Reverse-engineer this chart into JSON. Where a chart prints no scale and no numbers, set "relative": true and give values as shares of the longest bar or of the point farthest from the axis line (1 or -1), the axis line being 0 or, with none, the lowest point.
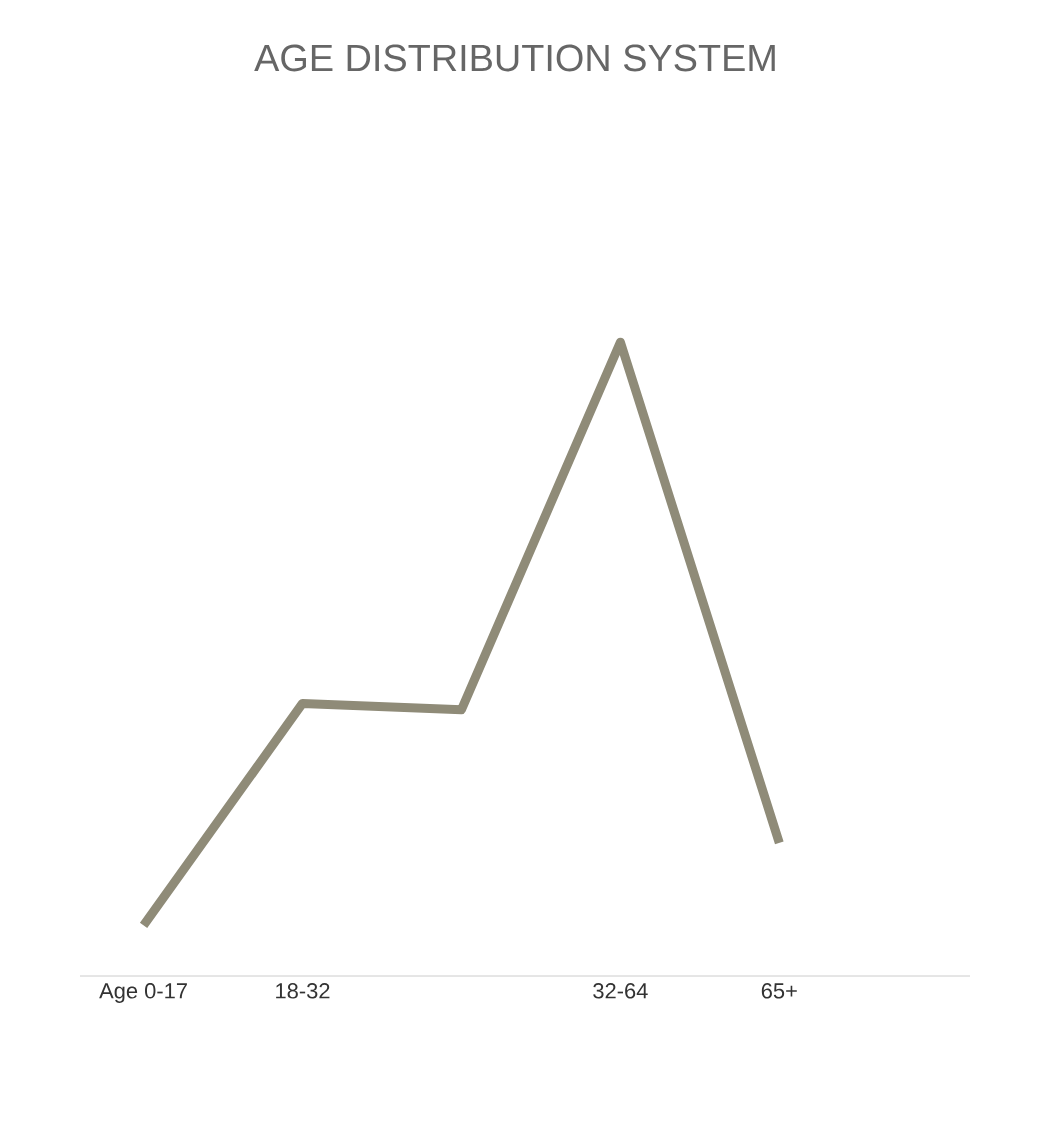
{
  "chart_data": {
    "type": "line",
    "title": "AGE DISTRIBUTION SYSTEM",
    "relative": true,
    "categories": [
      "Age 0-17",
      "18-32",
      null,
      "32-64",
      "65+"
    ],
    "series": [
      {
        "color": "#8f8b78",
        "values": [
          0.08,
          0.43,
          0.42,
          1,
          0.21
        ]
      }
    ],
    "marker": "none",
    "line_style": "solid"
  }
}
